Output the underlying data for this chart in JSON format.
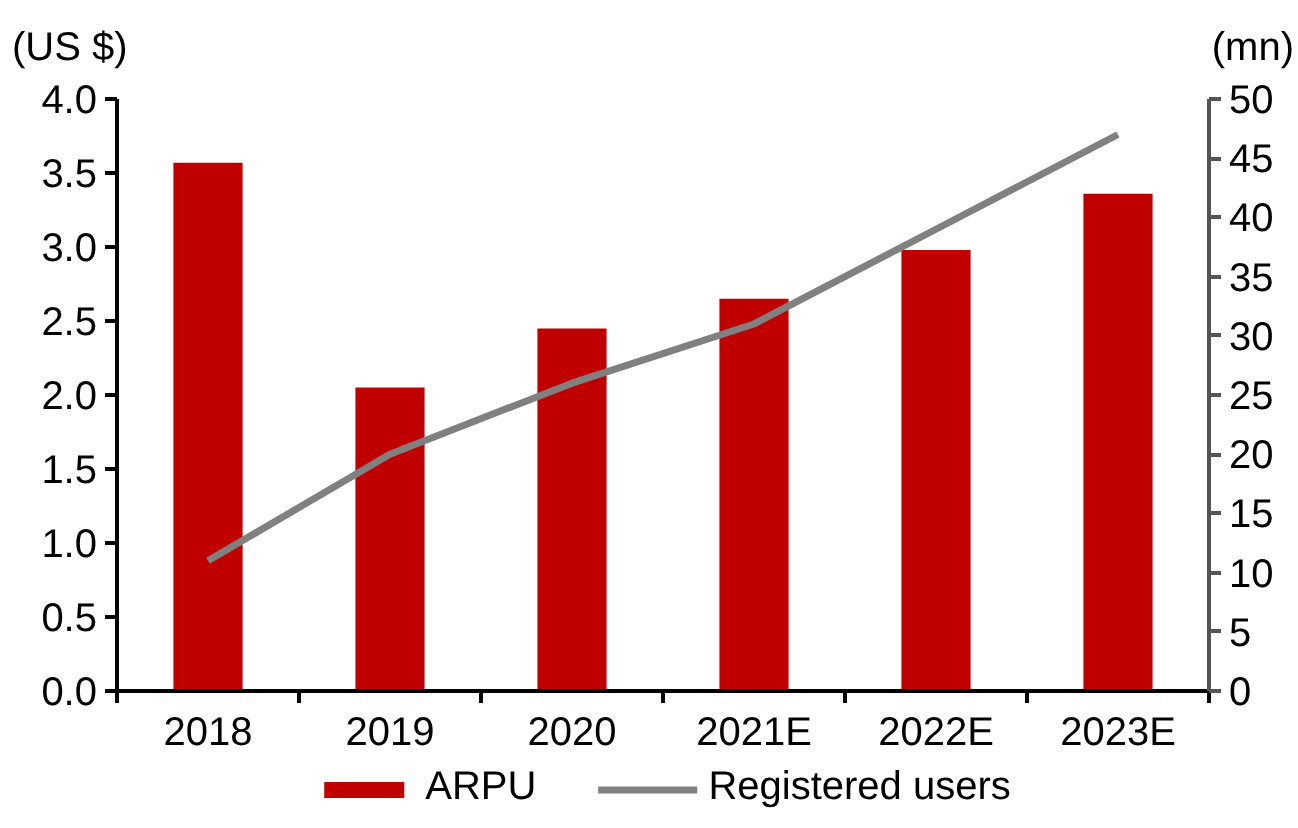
{
  "chart_data": {
    "type": "bar",
    "categories": [
      "2018",
      "2019",
      "2020",
      "2021E",
      "2022E",
      "2023E"
    ],
    "series": [
      {
        "name": "ARPU",
        "color": "#c00000",
        "values": [
          3.57,
          2.05,
          2.45,
          2.65,
          2.98,
          3.36
        ]
      },
      {
        "name": "Registered users",
        "type": "line",
        "axis": "y2",
        "color": "#808080",
        "values": [
          11,
          20,
          26,
          31,
          39,
          47
        ]
      }
    ],
    "ylabel": "(US $)",
    "y2label": "(mn)",
    "ylim": [
      0,
      4
    ],
    "yticks": [
      {
        "value": 0,
        "label": "0.0"
      },
      {
        "value": 0.5,
        "label": "0.5"
      },
      {
        "value": 1,
        "label": "1.0"
      },
      {
        "value": 1.5,
        "label": "1.5"
      },
      {
        "value": 2,
        "label": "2.0"
      },
      {
        "value": 2.5,
        "label": "2.5"
      },
      {
        "value": 3,
        "label": "3.0"
      },
      {
        "value": 3.5,
        "label": "3.5"
      },
      {
        "value": 4,
        "label": "4.0"
      }
    ],
    "y2lim": [
      0,
      50
    ],
    "y2ticks": [
      0,
      5,
      10,
      15,
      20,
      25,
      30,
      35,
      40,
      45,
      50
    ],
    "legend": "bottom"
  }
}
